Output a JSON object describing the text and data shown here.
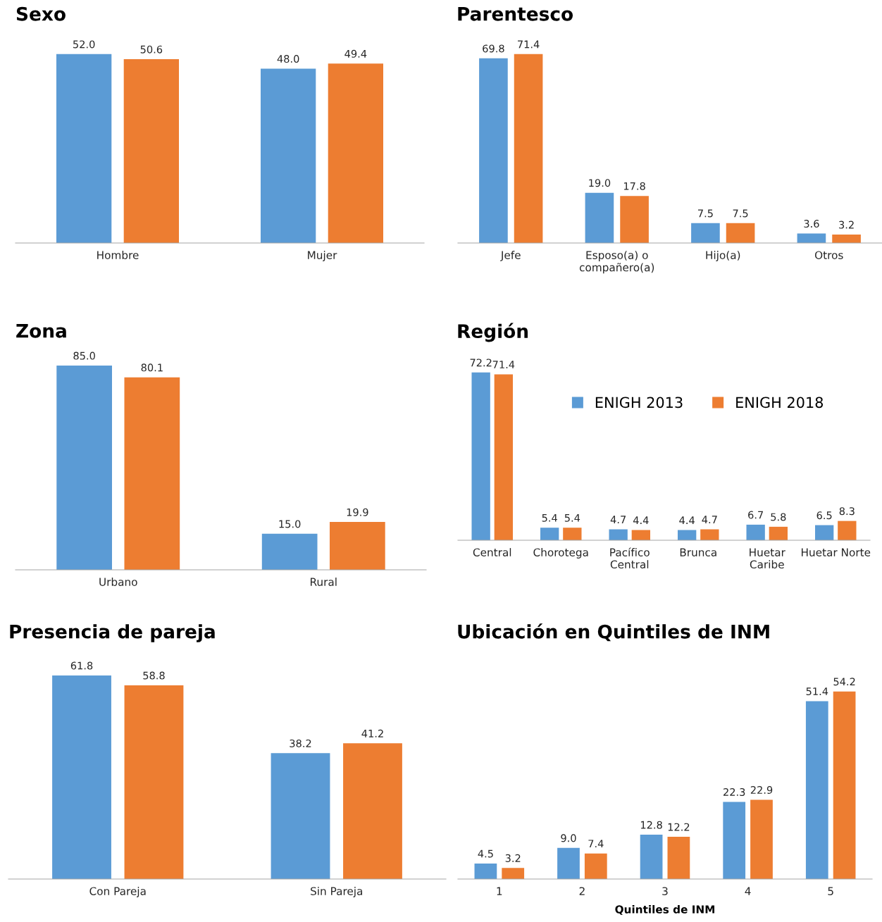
{
  "chart_data": [
    {
      "type": "bar",
      "title": "Sexo",
      "categories": [
        "Hombre",
        "Mujer"
      ],
      "series": [
        {
          "color": "#5b9bd5",
          "values": [
            52.0,
            48.0
          ],
          "value_labels": [
            "52.0",
            "48.0"
          ]
        },
        {
          "color": "#ed7d31",
          "values": [
            50.6,
            49.4
          ],
          "value_labels": [
            "50.6",
            "49.4"
          ]
        }
      ]
    },
    {
      "type": "bar",
      "title": "Parentesco",
      "categories": [
        "Jefe",
        "Esposo(a) o\ncompañero(a)",
        "Hijo(a)",
        "Otros"
      ],
      "series": [
        {
          "color": "#5b9bd5",
          "values": [
            69.8,
            19.0,
            7.5,
            3.6
          ],
          "value_labels": [
            "69.8",
            "19.0",
            "7.5",
            "3.6"
          ]
        },
        {
          "color": "#ed7d31",
          "values": [
            71.4,
            17.8,
            7.5,
            3.2
          ],
          "value_labels": [
            "71.4",
            "17.8",
            "7.5",
            "3.2"
          ]
        }
      ]
    },
    {
      "type": "bar",
      "title": "Zona",
      "categories": [
        "Urbano",
        "Rural"
      ],
      "series": [
        {
          "color": "#5b9bd5",
          "values": [
            85.0,
            15.0
          ],
          "value_labels": [
            "85.0",
            "15.0"
          ]
        },
        {
          "color": "#ed7d31",
          "values": [
            80.1,
            19.9
          ],
          "value_labels": [
            "80.1",
            "19.9"
          ]
        }
      ]
    },
    {
      "type": "bar",
      "title": "Región",
      "categories": [
        "Central",
        "Chorotega",
        "Pacífico\nCentral",
        "Brunca",
        "Huetar\nCaribe",
        "Huetar Norte"
      ],
      "legend": "top right",
      "series": [
        {
          "name": "ENIGH 2013",
          "color": "#5b9bd5",
          "values": [
            72.2,
            5.4,
            4.7,
            4.4,
            6.7,
            6.5
          ],
          "value_labels": [
            "72.2",
            "5.4",
            "4.7",
            "4.4",
            "6.7",
            "6.5"
          ]
        },
        {
          "name": "ENIGH 2018",
          "color": "#ed7d31",
          "values": [
            71.4,
            5.4,
            4.4,
            4.7,
            5.8,
            8.3
          ],
          "value_labels": [
            "71.4",
            "5.4",
            "4.4",
            "4.7",
            "5.8",
            "8.3"
          ]
        }
      ]
    },
    {
      "type": "bar",
      "title": "Presencia de pareja",
      "categories": [
        "Con Pareja",
        "Sin Pareja"
      ],
      "series": [
        {
          "color": "#5b9bd5",
          "values": [
            61.8,
            38.2
          ],
          "value_labels": [
            "61.8",
            "38.2"
          ]
        },
        {
          "color": "#ed7d31",
          "values": [
            58.8,
            41.2
          ],
          "value_labels": [
            "58.8",
            "41.2"
          ]
        }
      ]
    },
    {
      "type": "bar",
      "title": "Ubicación en Quintiles de INM",
      "xlabel": "Quintiles de INM",
      "categories": [
        "1",
        "2",
        "3",
        "4",
        "5"
      ],
      "series": [
        {
          "color": "#5b9bd5",
          "values": [
            4.5,
            9.0,
            12.8,
            22.3,
            51.4
          ],
          "value_labels": [
            "4.5",
            "9.0",
            "12.8",
            "22.3",
            "51.4"
          ]
        },
        {
          "color": "#ed7d31",
          "values": [
            3.2,
            7.4,
            12.2,
            22.9,
            54.2
          ],
          "value_labels": [
            "3.2",
            "7.4",
            "12.2",
            "22.9",
            "54.2"
          ]
        }
      ]
    }
  ]
}
